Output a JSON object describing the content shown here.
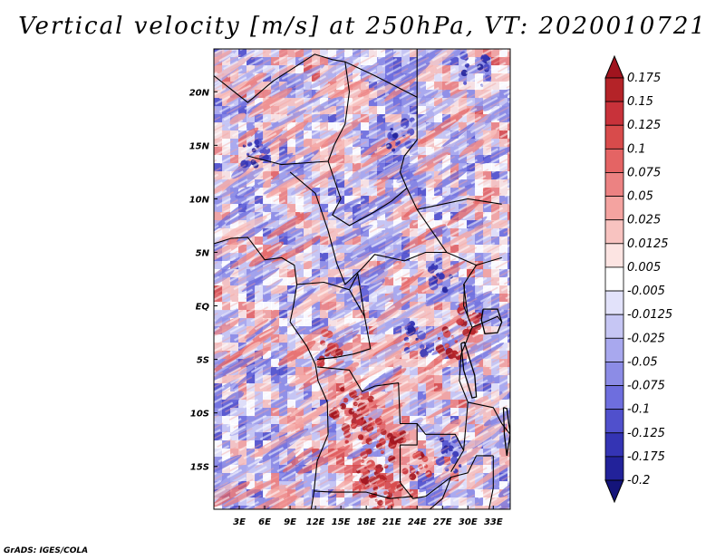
{
  "title": "Vertical velocity [m/s] at 250hPa, VT: 2020010721",
  "credit": "GrADS: IGES/COLA",
  "map": {
    "lon_range": [
      0,
      35
    ],
    "lat_range": [
      -19,
      24
    ],
    "lon_ticks": [
      {
        "value": 3,
        "label": "3E"
      },
      {
        "value": 6,
        "label": "6E"
      },
      {
        "value": 9,
        "label": "9E"
      },
      {
        "value": 12,
        "label": "12E"
      },
      {
        "value": 15,
        "label": "15E"
      },
      {
        "value": 18,
        "label": "18E"
      },
      {
        "value": 21,
        "label": "21E"
      },
      {
        "value": 24,
        "label": "24E"
      },
      {
        "value": 27,
        "label": "27E"
      },
      {
        "value": 30,
        "label": "30E"
      },
      {
        "value": 33,
        "label": "33E"
      }
    ],
    "lat_ticks": [
      {
        "value": 20,
        "label": "20N"
      },
      {
        "value": 15,
        "label": "15N"
      },
      {
        "value": 10,
        "label": "10N"
      },
      {
        "value": 5,
        "label": "5N"
      },
      {
        "value": 0,
        "label": "EQ"
      },
      {
        "value": -5,
        "label": "5S"
      },
      {
        "value": -10,
        "label": "10S"
      },
      {
        "value": -15,
        "label": "15S"
      }
    ]
  },
  "colorbar": {
    "levels": [
      "0.175",
      "0.15",
      "0.125",
      "0.1",
      "0.075",
      "0.05",
      "0.025",
      "0.0125",
      "0.005",
      "-0.005",
      "-0.0125",
      "-0.025",
      "-0.05",
      "-0.075",
      "-0.1",
      "-0.125",
      "-0.175",
      "-0.2"
    ],
    "colors": [
      "#a0141e",
      "#b42328",
      "#c8323a",
      "#d84b4b",
      "#e46464",
      "#ec8282",
      "#f4a3a0",
      "#f8c3c0",
      "#fce4e2",
      "#ffffff",
      "#e2e2fa",
      "#c6c6f4",
      "#a8a8ee",
      "#8c8ce6",
      "#6e6ede",
      "#5050cc",
      "#3434b4",
      "#22229a",
      "#14147a"
    ]
  },
  "chart_data": {
    "type": "heatmap",
    "title": "Vertical velocity [m/s] at 250hPa, VT: 2020010721",
    "variable": "Vertical velocity",
    "units": "m/s",
    "level": "250hPa",
    "valid_time": "2020010721",
    "x_range": [
      0,
      35
    ],
    "y_range": [
      -19,
      24
    ],
    "xlabel": "",
    "ylabel": "",
    "contour_levels": [
      -0.2,
      -0.175,
      -0.125,
      -0.1,
      -0.075,
      -0.05,
      -0.025,
      -0.0125,
      -0.005,
      0.005,
      0.0125,
      0.025,
      0.05,
      0.075,
      0.1,
      0.125,
      0.15,
      0.175
    ]
  }
}
